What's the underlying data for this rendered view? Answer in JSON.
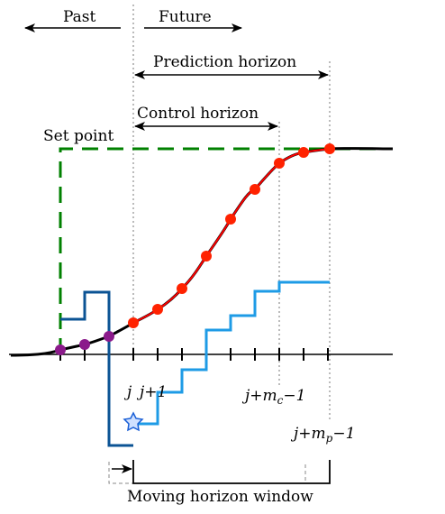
{
  "labels": {
    "past": "Past",
    "future": "Future",
    "prediction_horizon": "Prediction horizon",
    "control_horizon": "Control horizon",
    "set_point": "Set point",
    "moving_horizon_window": "Moving horizon window",
    "tick_j": "j",
    "tick_j_plus_1": "j+1",
    "tick_j_mc_prefix": "j+m",
    "tick_j_mc_sub": "c",
    "tick_j_mc_suffix": "−1",
    "tick_j_mp_prefix": "j+m",
    "tick_j_mp_sub": "p",
    "tick_j_mp_suffix": "−1"
  },
  "colors": {
    "setpoint": "#008000",
    "predicted_output": "#ff0000",
    "past_output": "#8b1a8b",
    "past_input": "#0b5394",
    "future_input": "#1e9be6",
    "star": "#1a5fd6",
    "axis": "#000000"
  },
  "icons": {
    "star": "star-icon"
  }
}
